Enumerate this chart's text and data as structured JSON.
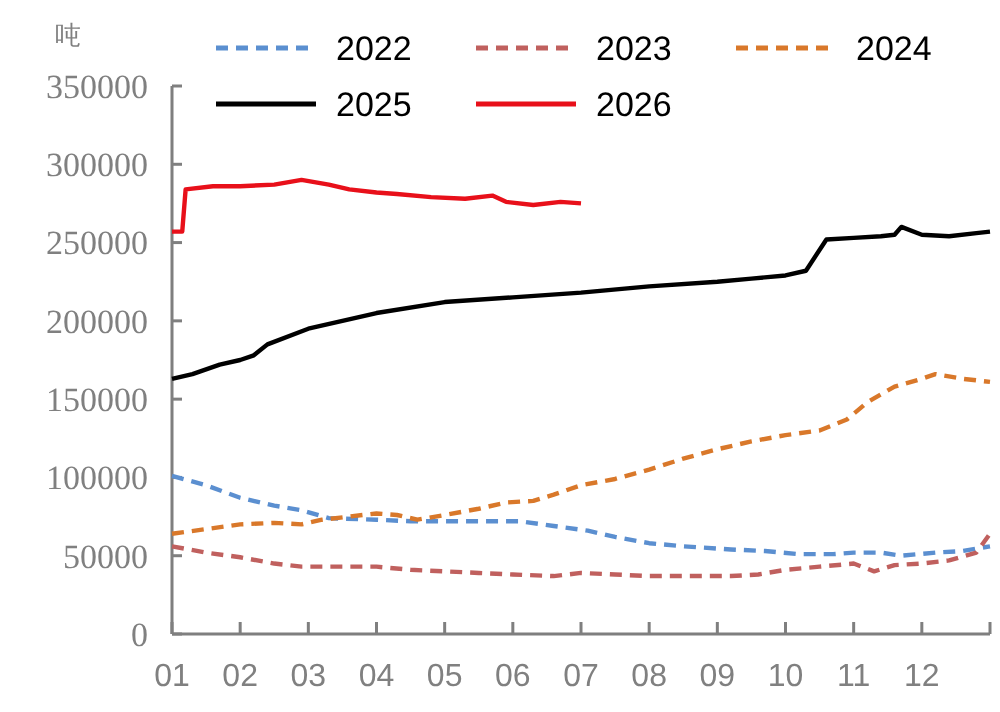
{
  "chart_data": {
    "type": "line",
    "ylabel": "吨",
    "xlim": [
      1,
      13
    ],
    "ylim": [
      0,
      350000
    ],
    "xticks": [
      {
        "value": 1,
        "label": "01"
      },
      {
        "value": 2,
        "label": "02"
      },
      {
        "value": 3,
        "label": "03"
      },
      {
        "value": 4,
        "label": "04"
      },
      {
        "value": 5,
        "label": "05"
      },
      {
        "value": 6,
        "label": "06"
      },
      {
        "value": 7,
        "label": "07"
      },
      {
        "value": 8,
        "label": "08"
      },
      {
        "value": 9,
        "label": "09"
      },
      {
        "value": 10,
        "label": "10"
      },
      {
        "value": 11,
        "label": "11"
      },
      {
        "value": 12,
        "label": "12"
      },
      {
        "value": 13,
        "label": null
      }
    ],
    "yticks": [
      0,
      50000,
      100000,
      150000,
      200000,
      250000,
      300000,
      350000
    ],
    "grid": false,
    "legend": "top",
    "marker": "none",
    "series": [
      {
        "name": "2022",
        "color": "#5b8fd0",
        "line_style": "dashed",
        "x": [
          1,
          1.5,
          2,
          2.5,
          2.9,
          3.3,
          4,
          4.5,
          5,
          5.5,
          6.1,
          6.6,
          7.1,
          7.5,
          8,
          8.5,
          9.2,
          9.7,
          10.2,
          10.7,
          11,
          11.4,
          11.7,
          12.2,
          12.6,
          13
        ],
        "values": [
          101000,
          95000,
          87000,
          82000,
          79000,
          74000,
          73000,
          72000,
          72000,
          72000,
          72000,
          69000,
          66000,
          62000,
          58000,
          56000,
          54000,
          53000,
          51000,
          51000,
          52000,
          52000,
          50000,
          52000,
          53000,
          56000
        ]
      },
      {
        "name": "2023",
        "color": "#c0605e",
        "line_style": "dashed",
        "x": [
          1,
          1.5,
          2,
          2.5,
          2.9,
          3.5,
          4,
          4.5,
          5,
          5.5,
          6,
          6.6,
          7,
          7.5,
          8,
          8.5,
          9.2,
          9.6,
          10,
          10.5,
          11,
          11.3,
          11.6,
          12,
          12.4,
          12.8,
          13
        ],
        "values": [
          56000,
          52000,
          49000,
          45000,
          43000,
          43000,
          43000,
          41000,
          40000,
          39000,
          38000,
          37000,
          39000,
          38000,
          37000,
          37000,
          37000,
          38000,
          41000,
          43000,
          45000,
          40000,
          44000,
          45000,
          47000,
          52000,
          64000
        ]
      },
      {
        "name": "2024",
        "color": "#d9782a",
        "line_style": "dashed",
        "x": [
          1,
          1.5,
          2,
          2.5,
          2.9,
          3.2,
          3.6,
          4,
          4.3,
          4.6,
          5,
          5.5,
          5.9,
          6.3,
          6.6,
          7,
          7.5,
          8,
          8.5,
          9,
          9.5,
          10,
          10.5,
          10.9,
          11.2,
          11.6,
          12,
          12.2,
          12.6,
          13
        ],
        "values": [
          64000,
          67000,
          70000,
          71000,
          70000,
          73000,
          75000,
          77000,
          76000,
          73000,
          76000,
          80000,
          84000,
          85000,
          89000,
          95000,
          99000,
          105000,
          112000,
          118000,
          123000,
          127000,
          130000,
          137000,
          148000,
          158000,
          163000,
          166000,
          163000,
          161000
        ]
      },
      {
        "name": "2025",
        "color": "#000000",
        "line_style": "solid",
        "x": [
          1,
          1.3,
          1.7,
          2,
          2.2,
          2.4,
          3,
          4,
          5,
          6,
          7,
          8,
          9,
          9.5,
          10,
          10.3,
          10.6,
          11,
          11.4,
          11.6,
          11.7,
          12,
          12.4,
          12.8,
          13
        ],
        "values": [
          163000,
          166000,
          172000,
          175000,
          178000,
          185000,
          195000,
          205000,
          212000,
          215000,
          218000,
          222000,
          225000,
          227000,
          229000,
          232000,
          252000,
          253000,
          254000,
          255000,
          260000,
          255000,
          254000,
          256000,
          257000
        ]
      },
      {
        "name": "2026",
        "color": "#e8101a",
        "line_style": "solid",
        "x": [
          1,
          1.15,
          1.2,
          1.6,
          2,
          2.5,
          2.9,
          3.3,
          3.6,
          4,
          4.3,
          4.8,
          5.3,
          5.7,
          5.9,
          6.3,
          6.7,
          7
        ],
        "values": [
          257000,
          257000,
          284000,
          286000,
          286000,
          287000,
          290000,
          287000,
          284000,
          282000,
          281000,
          279000,
          278000,
          280000,
          276000,
          274000,
          276000,
          275000
        ]
      }
    ]
  }
}
